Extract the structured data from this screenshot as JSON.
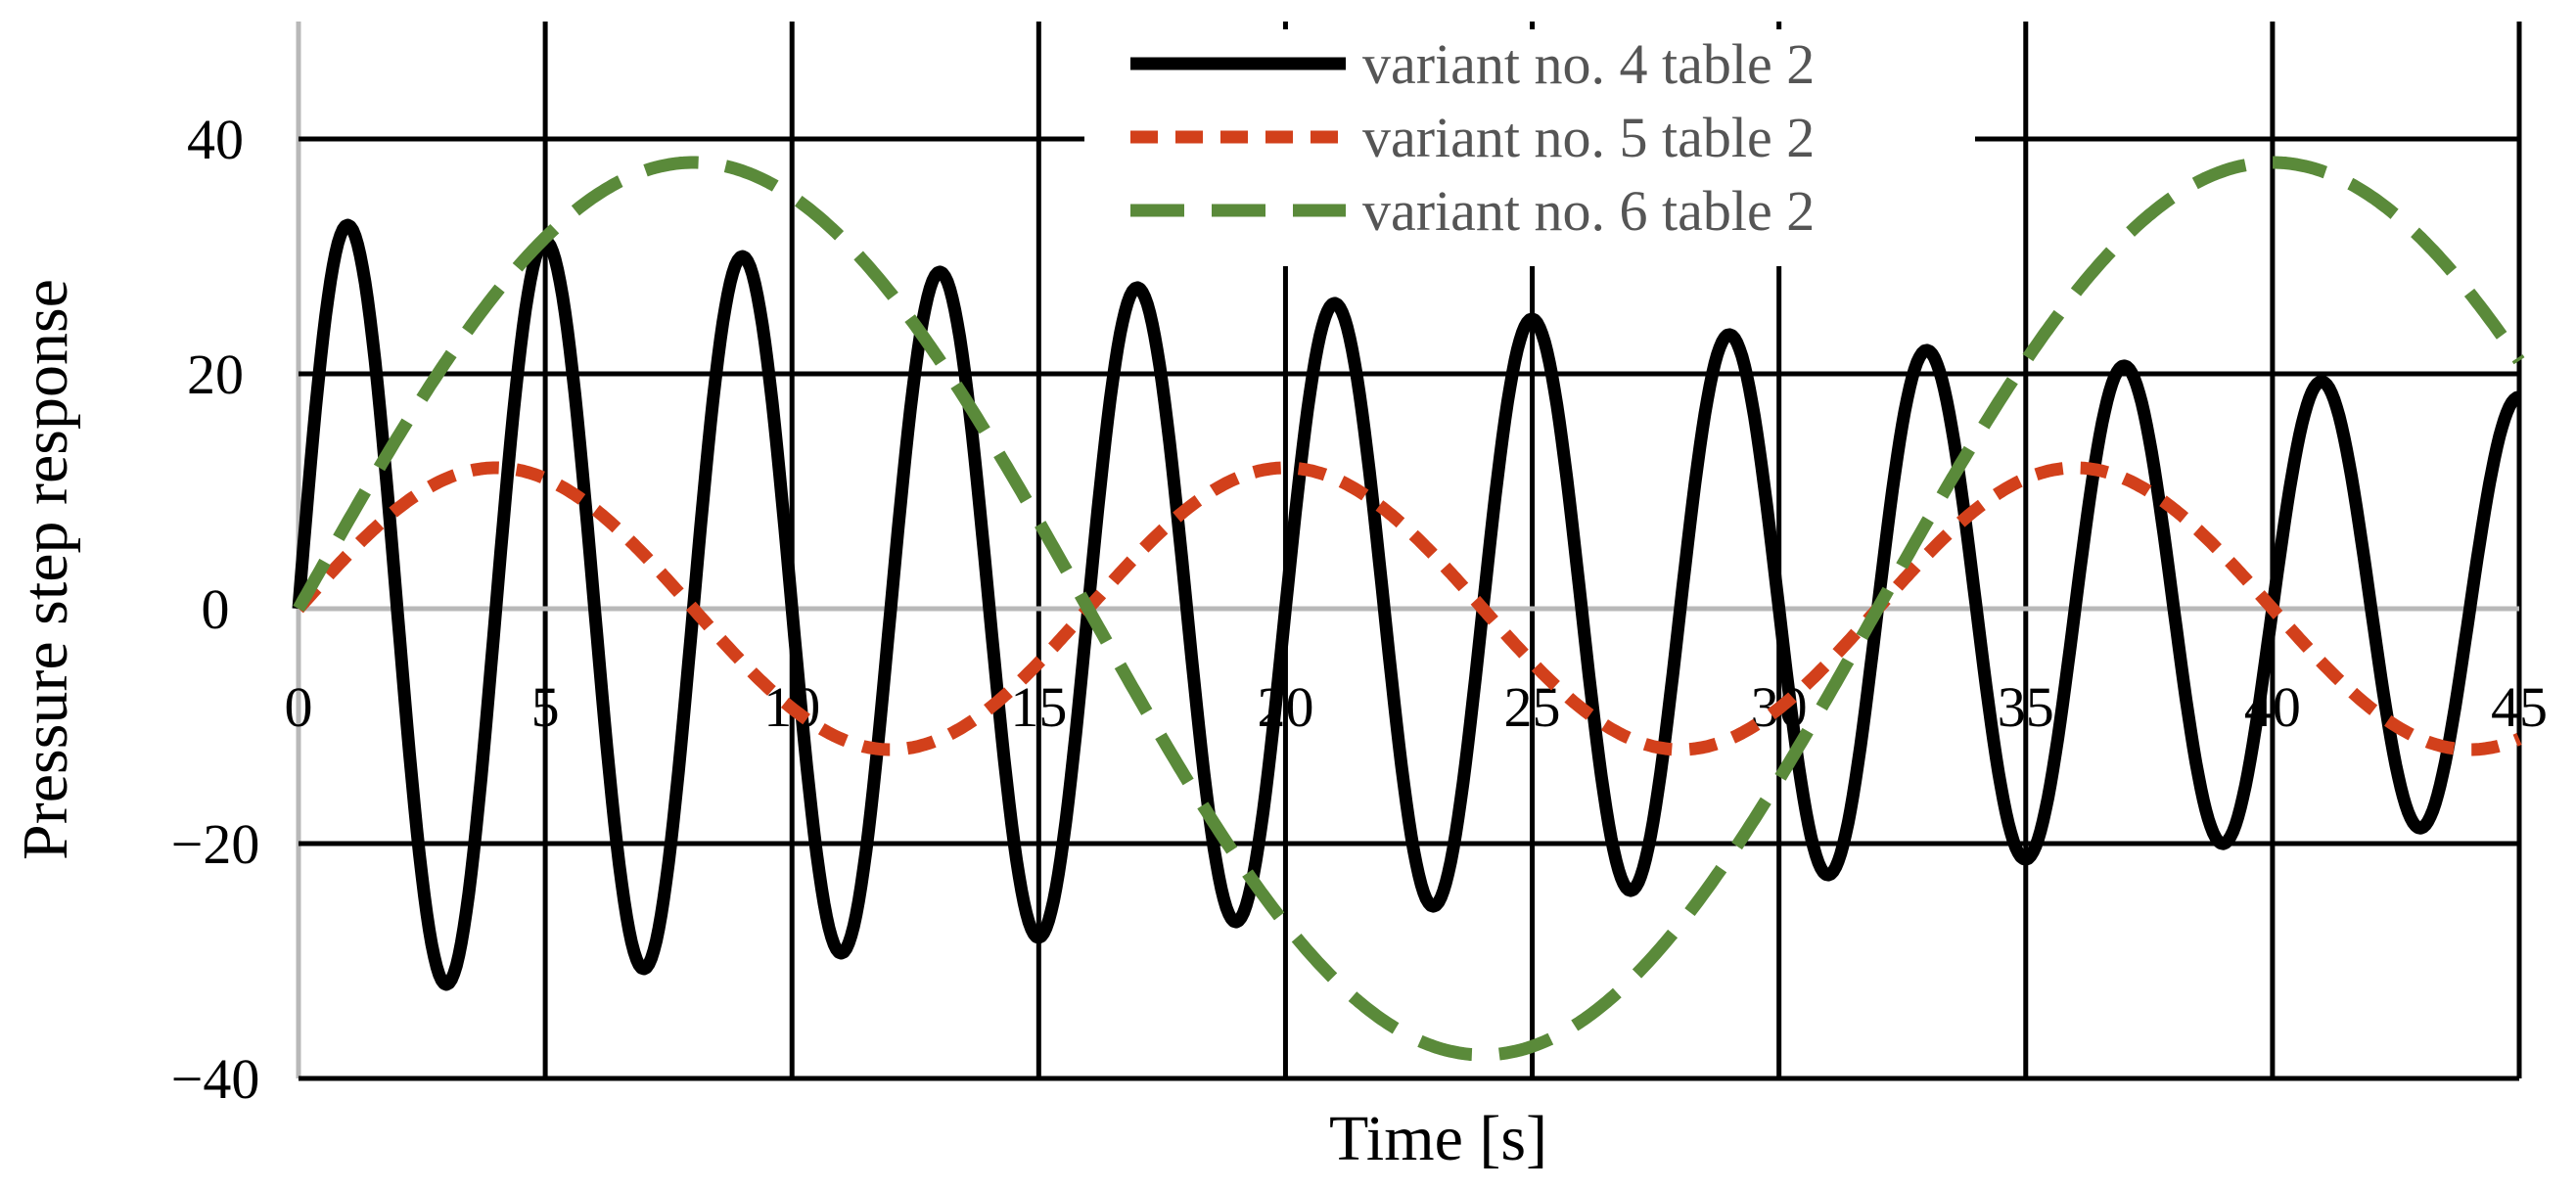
{
  "chart_data": {
    "type": "line",
    "title": "",
    "xlabel": "Time [s]",
    "ylabel": "Pressure step response",
    "xlim": [
      0,
      45
    ],
    "ylim": [
      -40,
      50
    ],
    "x_ticks": [
      0,
      5,
      10,
      15,
      20,
      25,
      30,
      35,
      40,
      45
    ],
    "y_ticks": [
      -40,
      -20,
      0,
      20,
      40
    ],
    "grid": true,
    "legend_position": "top-center",
    "series": [
      {
        "name": "variant no. 4 table 2",
        "color": "#000000",
        "line_style": "solid",
        "model": {
          "amplitude_start": 33,
          "amplitude_decay_per_s": 0.333,
          "period_s": 4.0
        },
        "points": [
          [
            0,
            0
          ],
          [
            1,
            33
          ],
          [
            3,
            -33
          ],
          [
            5,
            31.7
          ],
          [
            7,
            -31.3
          ],
          [
            9,
            31
          ],
          [
            11,
            -30.3
          ],
          [
            13,
            30
          ],
          [
            15,
            -29.7
          ],
          [
            17,
            29
          ],
          [
            19,
            -28.7
          ],
          [
            21,
            28
          ],
          [
            23,
            -27.7
          ],
          [
            25,
            27
          ],
          [
            27,
            -26.7
          ],
          [
            29,
            25
          ],
          [
            31,
            -24.7
          ],
          [
            33,
            23
          ],
          [
            35,
            -22.7
          ],
          [
            37,
            21
          ],
          [
            39,
            -20.7
          ],
          [
            41,
            19
          ],
          [
            43,
            -18.7
          ],
          [
            45,
            14
          ]
        ]
      },
      {
        "name": "variant no. 5 table 2",
        "color": "#D2401B",
        "line_style": "dashed",
        "model": {
          "amplitude": 12,
          "period_s": 16.0
        },
        "points": [
          [
            0,
            0
          ],
          [
            4,
            12
          ],
          [
            8,
            0
          ],
          [
            12,
            -12
          ],
          [
            16,
            0
          ],
          [
            20,
            12
          ],
          [
            24,
            0
          ],
          [
            28,
            -12
          ],
          [
            32,
            0
          ],
          [
            36,
            12
          ],
          [
            40,
            0
          ],
          [
            44,
            -12
          ],
          [
            45,
            -11.1
          ]
        ]
      },
      {
        "name": "variant no. 6 table 2",
        "color": "#5A8A3A",
        "line_style": "long-dashed",
        "model": {
          "amplitude": 38,
          "period_s": 32.0
        },
        "points": [
          [
            0,
            0
          ],
          [
            8,
            38
          ],
          [
            16,
            0
          ],
          [
            24,
            -38
          ],
          [
            32,
            0
          ],
          [
            40,
            38
          ],
          [
            45,
            22
          ]
        ]
      }
    ]
  }
}
